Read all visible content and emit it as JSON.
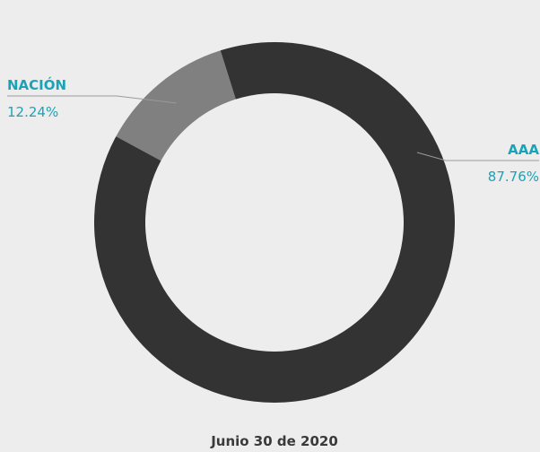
{
  "chart_data": {
    "type": "pie",
    "variant": "donut",
    "title": "",
    "caption": "Junio 30 de 2020",
    "slices": [
      {
        "label": "NACIÓN",
        "value": 12.24,
        "value_label": "12.24%",
        "color": "#808080"
      },
      {
        "label": "AAA",
        "value": 87.76,
        "value_label": "87.76%",
        "color": "#333333"
      }
    ],
    "label_color": "#1aa3b8",
    "leader_color": "#9a9a9a",
    "background": "#ededed"
  }
}
